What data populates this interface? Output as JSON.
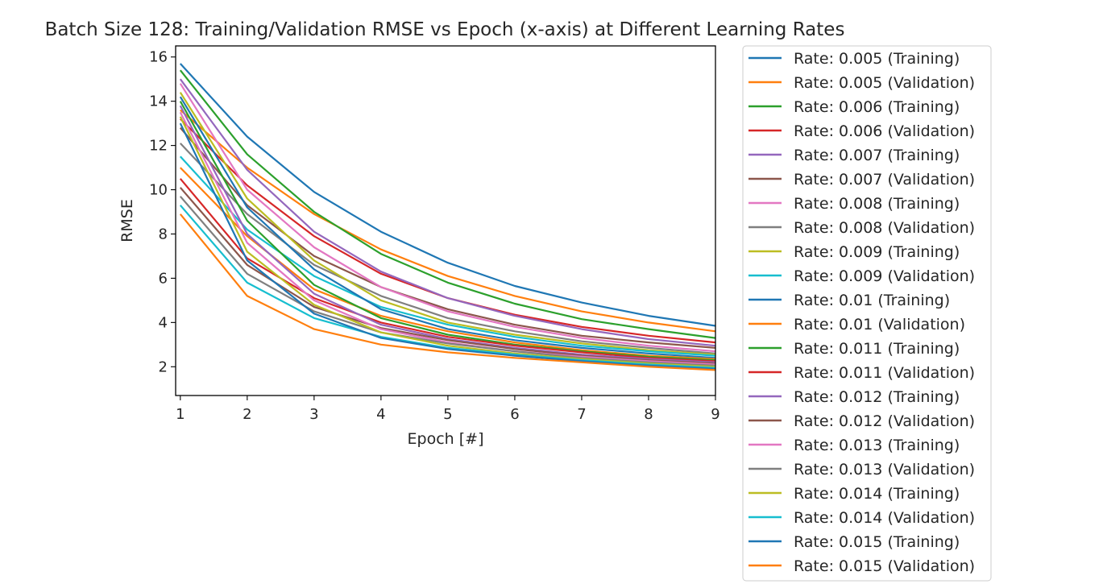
{
  "chart_data": {
    "type": "line",
    "title": "Batch Size 128: Training/Validation RMSE vs Epoch (x-axis) at Different Learning Rates",
    "xlabel": "Epoch [#]",
    "ylabel": "RMSE",
    "xlim": [
      0.93,
      9
    ],
    "ylim": [
      0.7,
      16.5
    ],
    "xticks": [
      1,
      2,
      3,
      4,
      5,
      6,
      7,
      8,
      9
    ],
    "yticks": [
      2,
      4,
      6,
      8,
      10,
      12,
      14,
      16
    ],
    "grid": false,
    "legend_position": "outside-right",
    "x": [
      1,
      2,
      3,
      4,
      5,
      6,
      7,
      8,
      9
    ],
    "series": [
      {
        "name": "Rate: 0.005 (Training)",
        "color": "#1f77b4",
        "values": [
          15.7,
          12.4,
          9.9,
          8.1,
          6.7,
          5.65,
          4.9,
          4.3,
          3.85
        ]
      },
      {
        "name": "Rate: 0.005 (Validation)",
        "color": "#ff7f0e",
        "values": [
          13.6,
          11.0,
          8.9,
          7.3,
          6.1,
          5.2,
          4.5,
          4.0,
          3.6
        ]
      },
      {
        "name": "Rate: 0.006 (Training)",
        "color": "#2ca02c",
        "values": [
          15.4,
          11.6,
          9.0,
          7.1,
          5.8,
          4.85,
          4.15,
          3.7,
          3.3
        ]
      },
      {
        "name": "Rate: 0.006 (Validation)",
        "color": "#d62728",
        "values": [
          13.2,
          10.2,
          7.9,
          6.2,
          5.1,
          4.35,
          3.8,
          3.4,
          3.1
        ]
      },
      {
        "name": "Rate: 0.007 (Training)",
        "color": "#9467bd",
        "values": [
          15.0,
          10.9,
          8.1,
          6.3,
          5.1,
          4.3,
          3.7,
          3.25,
          2.95
        ]
      },
      {
        "name": "Rate: 0.007 (Validation)",
        "color": "#8c564b",
        "values": [
          12.8,
          9.3,
          7.0,
          5.6,
          4.6,
          3.9,
          3.4,
          3.1,
          2.85
        ]
      },
      {
        "name": "Rate: 0.008 (Training)",
        "color": "#e377c2",
        "values": [
          14.8,
          10.0,
          7.4,
          5.6,
          4.5,
          3.8,
          3.3,
          2.95,
          2.7
        ]
      },
      {
        "name": "Rate: 0.008 (Validation)",
        "color": "#7f7f7f",
        "values": [
          12.1,
          8.9,
          6.6,
          5.2,
          4.2,
          3.6,
          3.15,
          2.85,
          2.6
        ]
      },
      {
        "name": "Rate: 0.009 (Training)",
        "color": "#bcbd22",
        "values": [
          14.4,
          9.6,
          6.8,
          5.0,
          4.0,
          3.45,
          3.05,
          2.75,
          2.55
        ]
      },
      {
        "name": "Rate: 0.009 (Validation)",
        "color": "#17becf",
        "values": [
          11.5,
          8.2,
          6.1,
          4.7,
          3.9,
          3.35,
          2.95,
          2.7,
          2.5
        ]
      },
      {
        "name": "Rate: 0.01 (Training)",
        "color": "#1f77b4",
        "values": [
          14.2,
          9.2,
          6.4,
          4.6,
          3.7,
          3.2,
          2.85,
          2.6,
          2.4
        ]
      },
      {
        "name": "Rate: 0.01 (Validation)",
        "color": "#ff7f0e",
        "values": [
          11.0,
          7.9,
          5.5,
          4.3,
          3.6,
          3.1,
          2.75,
          2.5,
          2.35
        ]
      },
      {
        "name": "Rate: 0.011 (Training)",
        "color": "#2ca02c",
        "values": [
          14.0,
          8.6,
          5.7,
          4.2,
          3.45,
          3.0,
          2.7,
          2.45,
          2.3
        ]
      },
      {
        "name": "Rate: 0.011 (Validation)",
        "color": "#d62728",
        "values": [
          10.5,
          6.9,
          5.1,
          4.0,
          3.35,
          2.95,
          2.65,
          2.4,
          2.25
        ]
      },
      {
        "name": "Rate: 0.012 (Training)",
        "color": "#9467bd",
        "values": [
          13.8,
          8.0,
          5.3,
          3.9,
          3.25,
          2.85,
          2.55,
          2.35,
          2.2
        ]
      },
      {
        "name": "Rate: 0.012 (Validation)",
        "color": "#8c564b",
        "values": [
          10.1,
          6.6,
          4.7,
          3.75,
          3.2,
          2.8,
          2.5,
          2.3,
          2.15
        ]
      },
      {
        "name": "Rate: 0.013 (Training)",
        "color": "#e377c2",
        "values": [
          13.5,
          7.6,
          5.0,
          3.7,
          3.1,
          2.7,
          2.45,
          2.25,
          2.1
        ]
      },
      {
        "name": "Rate: 0.013 (Validation)",
        "color": "#7f7f7f",
        "values": [
          9.7,
          6.2,
          4.5,
          3.55,
          3.05,
          2.7,
          2.4,
          2.2,
          2.05
        ]
      },
      {
        "name": "Rate: 0.014 (Training)",
        "color": "#bcbd22",
        "values": [
          13.3,
          7.2,
          4.8,
          3.55,
          2.95,
          2.6,
          2.35,
          2.15,
          2.0
        ]
      },
      {
        "name": "Rate: 0.014 (Validation)",
        "color": "#17becf",
        "values": [
          9.3,
          5.8,
          4.2,
          3.35,
          2.85,
          2.55,
          2.3,
          2.1,
          1.95
        ]
      },
      {
        "name": "Rate: 0.015 (Training)",
        "color": "#1f77b4",
        "values": [
          13.0,
          6.8,
          4.4,
          3.3,
          2.8,
          2.5,
          2.25,
          2.05,
          1.9
        ]
      },
      {
        "name": "Rate: 0.015 (Validation)",
        "color": "#ff7f0e",
        "values": [
          8.9,
          5.2,
          3.7,
          3.0,
          2.65,
          2.4,
          2.2,
          2.0,
          1.85
        ]
      }
    ]
  }
}
